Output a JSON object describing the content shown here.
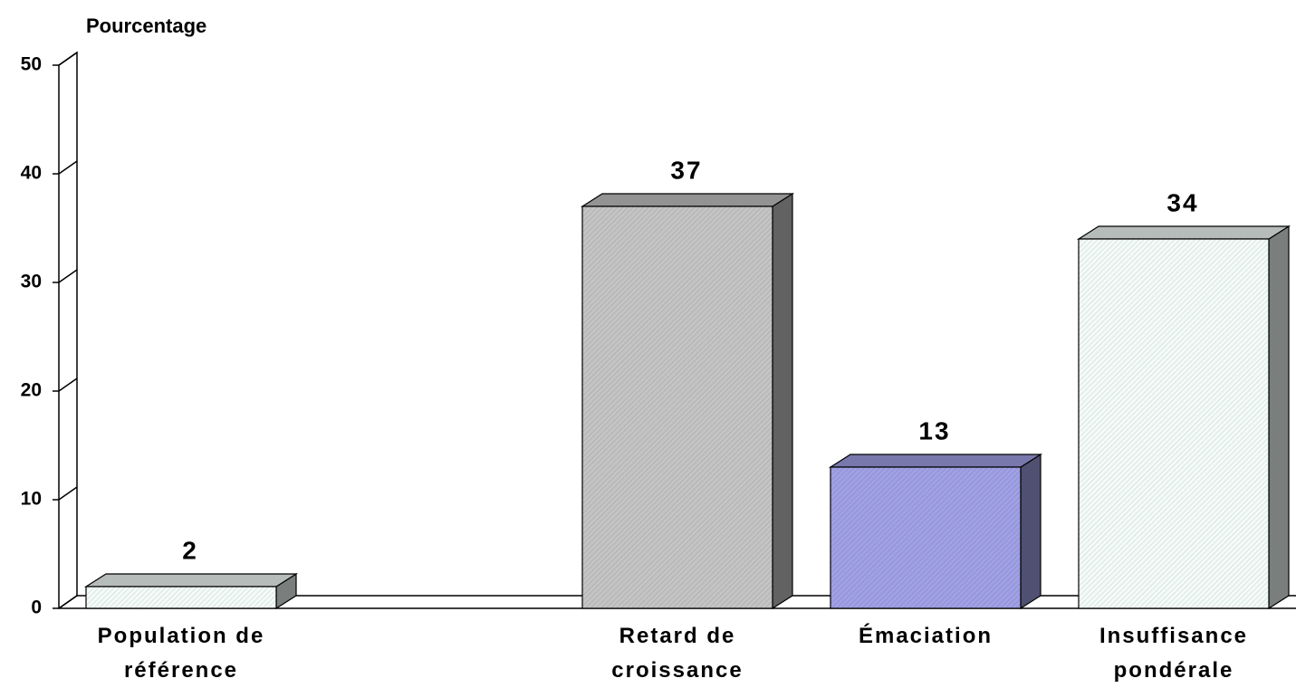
{
  "chart_data": {
    "type": "bar3d",
    "y_label": "Pourcentage",
    "categories": [
      "Population de\nréférence",
      null,
      "Retard de\ncroissance",
      "Émaciation",
      "Insuffisance\npondérale"
    ],
    "values": [
      2,
      null,
      37,
      13,
      34
    ],
    "colors": [
      "#f3fbf8",
      null,
      "#c4c4c4",
      "#a0a0e6",
      "#f3fbf8"
    ],
    "ylim": [
      0,
      50
    ],
    "yticks": [
      0,
      10,
      20,
      30,
      40,
      50
    ]
  }
}
